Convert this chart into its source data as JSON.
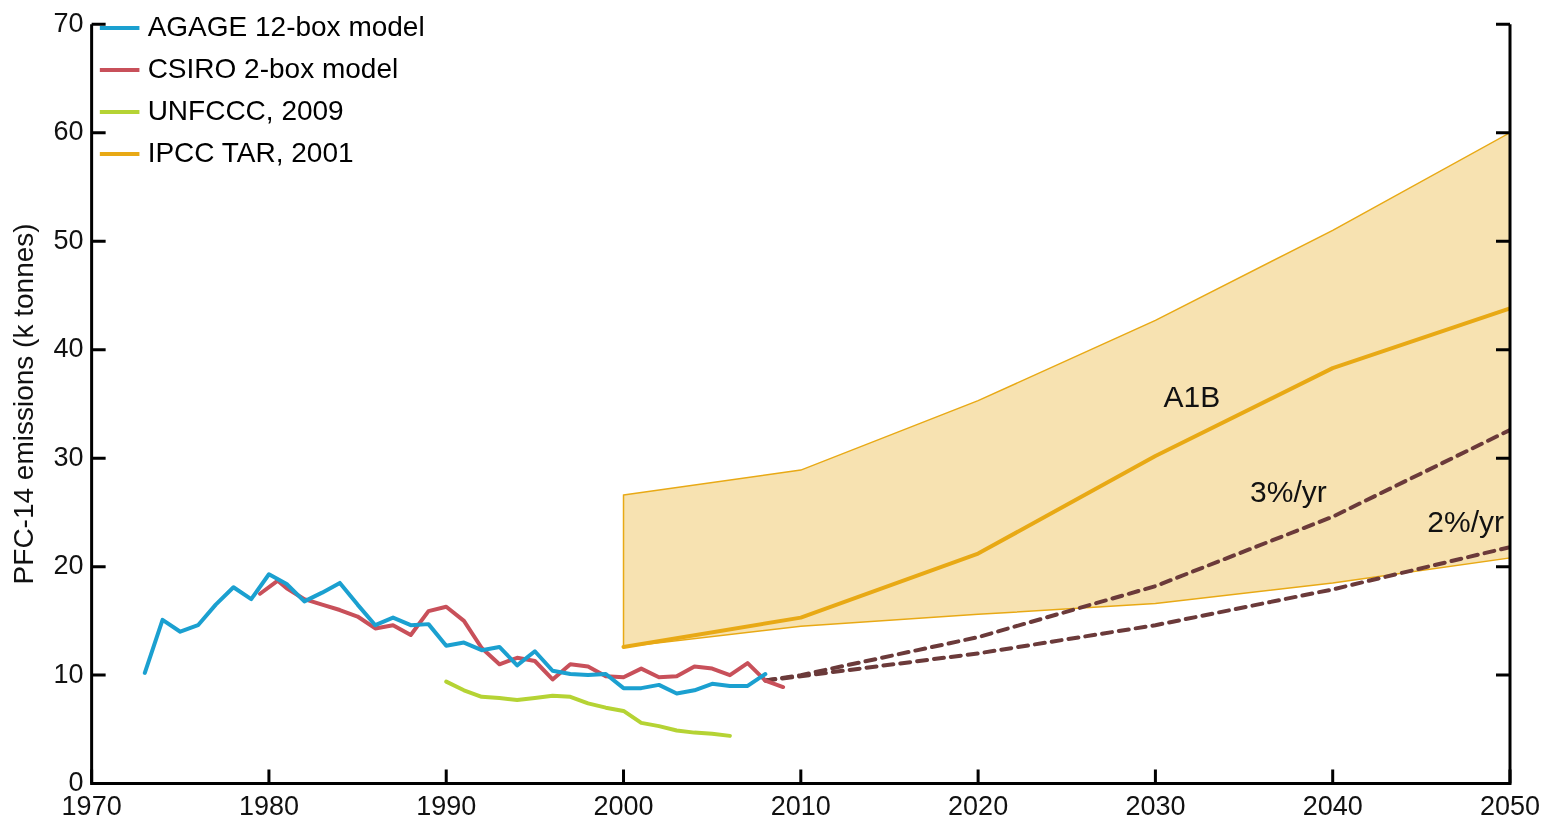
{
  "chart_data": {
    "type": "line",
    "ylabel": "PFC-14 emissions (k tonnes)",
    "xlim": [
      1970,
      2050
    ],
    "xticks": [
      1970,
      1980,
      1990,
      2000,
      2010,
      2020,
      2030,
      2040,
      2050
    ],
    "ylim": [
      0,
      70
    ],
    "yticks": [
      0,
      10,
      20,
      30,
      40,
      50,
      60,
      70
    ],
    "grid": false,
    "legend": "top left",
    "marker": "none",
    "series": [
      {
        "name": "AGAGE 12-box model",
        "color": "#1ba0d0",
        "x": [
          1973,
          1974,
          1975,
          1976,
          1977,
          1978,
          1979,
          1980,
          1981,
          1982,
          1983,
          1984,
          1985,
          1986,
          1987,
          1988,
          1989,
          1990,
          1991,
          1992,
          1993,
          1994,
          1995,
          1996,
          1997,
          1998,
          1999,
          2000,
          2001,
          2002,
          2003,
          2004,
          2005,
          2006,
          2007,
          2008
        ],
        "values": [
          10.2,
          15.1,
          14.0,
          14.6,
          16.5,
          18.1,
          17.0,
          19.3,
          18.4,
          16.8,
          17.6,
          18.5,
          16.5,
          14.6,
          15.3,
          14.6,
          14.7,
          12.7,
          13.0,
          12.3,
          12.6,
          10.9,
          12.2,
          10.4,
          10.1,
          10.0,
          10.1,
          8.8,
          8.8,
          9.1,
          8.3,
          8.6,
          9.2,
          9.0,
          9.0,
          10.1
        ]
      },
      {
        "name": "CSIRO 2-box model",
        "color": "#c8505a",
        "x": [
          1979.5,
          1980.5,
          1981,
          1982,
          1983,
          1984,
          1985,
          1986,
          1987,
          1988,
          1989,
          1990,
          1991,
          1992,
          1993,
          1994,
          1995,
          1996,
          1997,
          1998,
          1999,
          2000,
          2001,
          2002,
          2003,
          2004,
          2005,
          2006,
          2007,
          2008,
          2009
        ],
        "values": [
          17.5,
          18.7,
          18.0,
          17.0,
          16.5,
          16.0,
          15.4,
          14.3,
          14.6,
          13.7,
          15.9,
          16.3,
          15.0,
          12.5,
          11.0,
          11.6,
          11.3,
          9.6,
          11.0,
          10.8,
          9.9,
          9.8,
          10.6,
          9.8,
          9.9,
          10.8,
          10.6,
          10.0,
          11.1,
          9.5,
          8.9
        ]
      },
      {
        "name": "UNFCCC, 2009",
        "color": "#b5d334",
        "x": [
          1990,
          1991,
          1992,
          1993,
          1994,
          1995,
          1996,
          1997,
          1998,
          1999,
          2000,
          2001,
          2002,
          2003,
          2004,
          2005,
          2006
        ],
        "values": [
          9.4,
          8.6,
          8.0,
          7.9,
          7.7,
          7.9,
          8.1,
          8.0,
          7.4,
          7.0,
          6.7,
          5.6,
          5.3,
          4.9,
          4.7,
          4.6,
          4.4
        ]
      },
      {
        "name": "IPCC TAR, 2001",
        "color": "#e8a915",
        "x": [
          2000,
          2010,
          2020,
          2030,
          2040,
          2050
        ],
        "values": [
          12.6,
          15.3,
          21.2,
          30.2,
          38.3,
          43.8
        ],
        "lower": [
          12.6,
          14.5,
          15.6,
          16.6,
          18.5,
          20.8
        ],
        "upper": [
          26.6,
          28.9,
          35.3,
          42.7,
          51.0,
          60.0
        ]
      },
      {
        "color": "#6b3a3a",
        "line_style": "dashed",
        "x": [
          2008,
          2010,
          2020,
          2030,
          2040,
          2050
        ],
        "values": [
          9.5,
          10.0,
          13.5,
          18.2,
          24.6,
          32.6
        ]
      },
      {
        "color": "#6b3a3a",
        "line_style": "dashed",
        "x": [
          2008,
          2010,
          2020,
          2030,
          2040,
          2050
        ],
        "values": [
          9.5,
          9.9,
          12.0,
          14.6,
          17.9,
          21.8
        ]
      }
    ],
    "annotations": [
      {
        "text": "A1B",
        "x": 2034,
        "y": 33.4
      },
      {
        "text": "3%/yr",
        "x": 2040,
        "y": 24.6
      },
      {
        "text": "2%/yr",
        "x": 2050,
        "y": 21.8
      }
    ]
  }
}
